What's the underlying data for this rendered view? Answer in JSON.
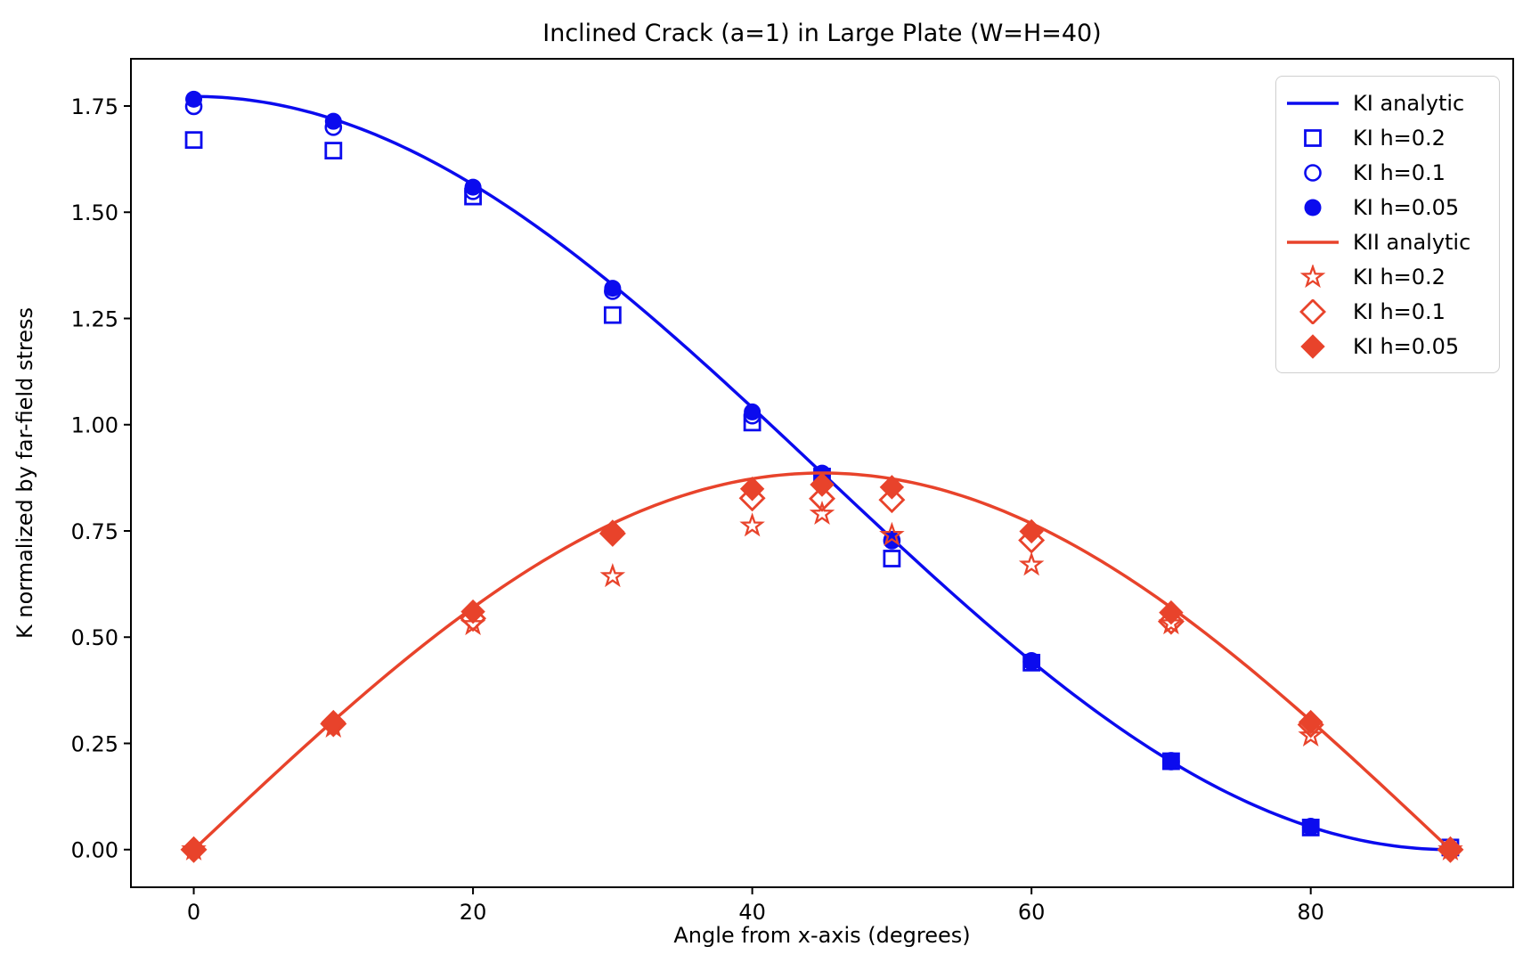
{
  "window": {
    "background": "#ffffff"
  },
  "chart_data": {
    "type": "line",
    "title": "Inclined Crack (a=1) in Large Plate (W=H=40)",
    "xlabel": "Angle from x-axis (degrees)",
    "ylabel": "K normalized by far-field stress",
    "xlim": [
      -4.5,
      94.5
    ],
    "ylim": [
      -0.0886,
      1.8611
    ],
    "xticks": [
      0,
      20,
      40,
      60,
      80
    ],
    "yticks": [
      0.0,
      0.25,
      0.5,
      0.75,
      1.0,
      1.25,
      1.5,
      1.75
    ],
    "grid": false,
    "legend_position": "upper right",
    "colors": {
      "KI_blue": "#0b0bee",
      "KII_red": "#e8432b",
      "spine": "#000000"
    },
    "amplitude": 1.7725,
    "analytic_curves": [
      {
        "name": "KI analytic",
        "formula": "cos2",
        "color": "#0b0bee",
        "theta_range": [
          0,
          90
        ]
      },
      {
        "name": "KII analytic",
        "formula": "sincos",
        "color": "#e8432b",
        "theta_range": [
          0,
          90
        ]
      }
    ],
    "angles": [
      0,
      10,
      20,
      30,
      40,
      45,
      50,
      60,
      70,
      80,
      90
    ],
    "marker_series": [
      {
        "name": "KI h=0.2",
        "marker": "open-square",
        "color": "#0b0bee",
        "values": [
          1.67,
          1.645,
          1.537,
          1.258,
          1.005,
          0.878,
          0.685,
          0.44,
          0.208,
          0.052,
          0.005
        ]
      },
      {
        "name": "KI h=0.1",
        "marker": "open-circle",
        "color": "#0b0bee",
        "values": [
          1.749,
          1.7,
          1.549,
          1.314,
          1.021,
          0.883,
          0.727,
          0.442,
          0.207,
          0.053,
          0.001
        ]
      },
      {
        "name": "KI h=0.05",
        "marker": "filled-circle",
        "color": "#0b0bee",
        "values": [
          1.766,
          1.714,
          1.559,
          1.321,
          1.03,
          0.886,
          0.73,
          0.445,
          0.21,
          0.055,
          0.002
        ]
      },
      {
        "name": "KII h=0.2 (labeled KI h=0.2)",
        "marker": "open-star",
        "color": "#e8432b",
        "values": [
          0.0,
          0.289,
          0.53,
          0.643,
          0.762,
          0.79,
          0.74,
          0.67,
          0.532,
          0.268,
          0.0
        ]
      },
      {
        "name": "KII h=0.1 (labeled KI h=0.1)",
        "marker": "open-diamond",
        "color": "#e8432b",
        "values": [
          0.0,
          0.296,
          0.544,
          0.744,
          0.827,
          0.826,
          0.823,
          0.728,
          0.537,
          0.294,
          0.0
        ]
      },
      {
        "name": "KII h=0.05 (labeled KI h=0.05)",
        "marker": "filled-diamond",
        "color": "#e8432b",
        "values": [
          0.0,
          0.3,
          0.56,
          0.748,
          0.849,
          0.859,
          0.853,
          0.749,
          0.558,
          0.3,
          0.0
        ]
      }
    ],
    "legend": [
      {
        "label": "KI analytic",
        "handle": "line",
        "color": "#0b0bee"
      },
      {
        "label": "KI h=0.2",
        "handle": "open-square",
        "color": "#0b0bee"
      },
      {
        "label": "KI h=0.1",
        "handle": "open-circle",
        "color": "#0b0bee"
      },
      {
        "label": "KI h=0.05",
        "handle": "filled-circle",
        "color": "#0b0bee"
      },
      {
        "label": "KII analytic",
        "handle": "line",
        "color": "#e8432b"
      },
      {
        "label": "KI h=0.2",
        "handle": "open-star",
        "color": "#e8432b"
      },
      {
        "label": "KI h=0.1",
        "handle": "open-diamond",
        "color": "#e8432b"
      },
      {
        "label": "KI h=0.05",
        "handle": "filled-diamond",
        "color": "#e8432b"
      }
    ]
  }
}
